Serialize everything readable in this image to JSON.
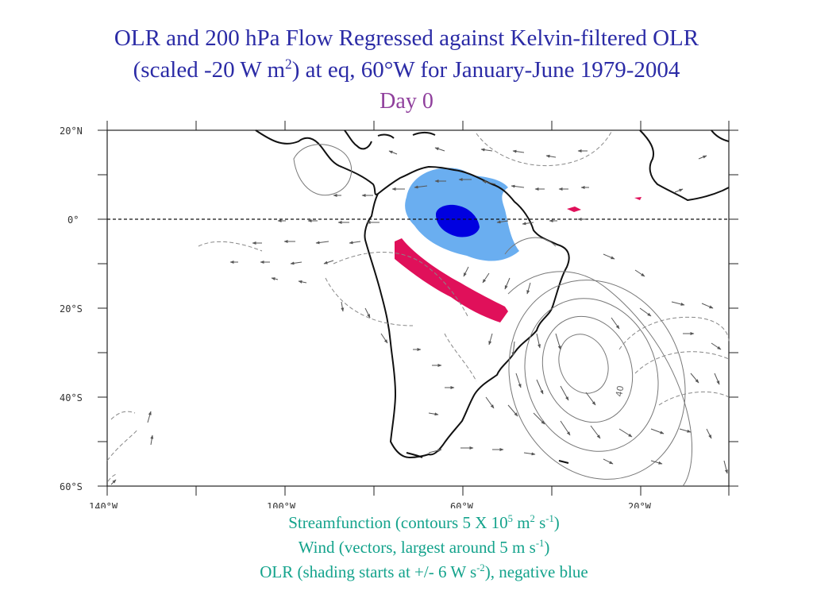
{
  "title": {
    "line1": "OLR and 200 hPa Flow Regressed against Kelvin-filtered OLR",
    "line2_pre": "(scaled -20 W m",
    "line2_sup": "2",
    "line2_post": ") at eq, 60°W for January-June 1979-2004",
    "day": "Day 0"
  },
  "axes": {
    "lat_labels": [
      "20°N",
      "0°",
      "20°S",
      "40°S",
      "60°S"
    ],
    "lon_labels": [
      "140°W",
      "100°W",
      "60°W",
      "20°W"
    ]
  },
  "contour_label": "40",
  "captions": {
    "line1": {
      "pre": "Streamfunction (contours 5 X 10",
      "sup1": "5",
      "mid1": " m",
      "sup2": "2",
      "mid2": " s",
      "sup3": "-1",
      "post": ")"
    },
    "line2": {
      "pre": "Wind (vectors, largest around 5 m s",
      "sup": "-1",
      "post": ")"
    },
    "line3": {
      "pre": "OLR (shading starts at +/- 6 W s",
      "sup": "-2",
      "post": "), negative blue"
    }
  },
  "colors": {
    "title": "#2b2ba6",
    "day": "#8f3f9c",
    "caption": "#14a38c",
    "olr_negative_light": "#6aaef0",
    "olr_negative_strong": "#0000e0",
    "olr_positive": "#e0105a"
  }
}
